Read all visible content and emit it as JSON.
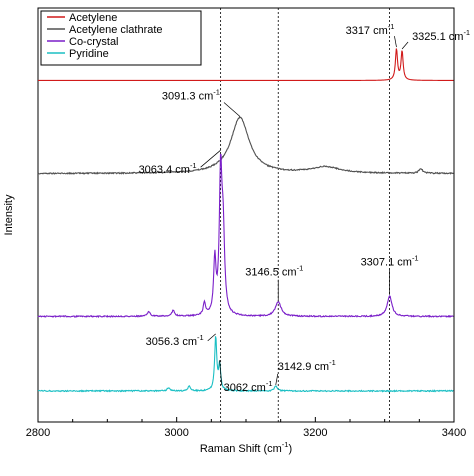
{
  "chart_data": {
    "type": "line",
    "xlabel": "Raman Shift (cm",
    "xlabel_sup": "-1",
    "xlabel_tail": ")",
    "ylabel": "Intensity",
    "xlim": [
      2800,
      3400
    ],
    "x_ticks": [
      2800,
      3000,
      3200,
      3400
    ],
    "grid": false,
    "legend_position": "top-left",
    "reference_lines_x": [
      3063.4,
      3146.5,
      3307.1
    ],
    "series": [
      {
        "name": "Acetylene",
        "color": "#d11a1a",
        "baseline_frac": 0.175,
        "peaks": [
          [
            3317,
            0.075,
            1.8
          ],
          [
            3325.1,
            0.07,
            1.8
          ]
        ]
      },
      {
        "name": "Acetylene clathrate",
        "color": "#505050",
        "baseline_frac": 0.4,
        "peaks": [
          [
            3091.3,
            0.135,
            16
          ],
          [
            3215,
            0.015,
            25
          ],
          [
            3352,
            0.012,
            3
          ]
        ]
      },
      {
        "name": "Co-crystal",
        "color": "#7a1fc9",
        "baseline_frac": 0.745,
        "peaks": [
          [
            3063.4,
            0.33,
            2.2
          ],
          [
            3067,
            0.19,
            2.5
          ],
          [
            3055,
            0.13,
            2
          ],
          [
            3146.5,
            0.035,
            5
          ],
          [
            3307.1,
            0.05,
            4
          ],
          [
            3040,
            0.03,
            2
          ],
          [
            2995,
            0.014,
            2.5
          ],
          [
            2960,
            0.012,
            2.5
          ]
        ]
      },
      {
        "name": "Pyridine",
        "color": "#1bbfc4",
        "baseline_frac": 0.925,
        "peaks": [
          [
            3056.3,
            0.13,
            1.8
          ],
          [
            3062,
            0.06,
            1.8
          ],
          [
            3142.9,
            0.012,
            2.5
          ],
          [
            3018,
            0.012,
            2
          ],
          [
            2988,
            0.008,
            2
          ]
        ]
      }
    ],
    "annotations": [
      {
        "text": "3317 cm",
        "sup": "-1",
        "x": 3317,
        "series": "Acetylene"
      },
      {
        "text": "3325.1 cm",
        "sup": "-1",
        "x": 3325.1,
        "series": "Acetylene"
      },
      {
        "text": "3091.3 cm",
        "sup": "-1",
        "x": 3091.3,
        "series": "Acetylene clathrate"
      },
      {
        "text": "3063.4 cm",
        "sup": "-1",
        "x": 3063.4,
        "series": "Co-crystal"
      },
      {
        "text": "3146.5 cm",
        "sup": "-1",
        "x": 3146.5,
        "series": "Co-crystal"
      },
      {
        "text": "3307.1 cm",
        "sup": "-1",
        "x": 3307.1,
        "series": "Co-crystal"
      },
      {
        "text": "3056.3 cm",
        "sup": "-1",
        "x": 3056.3,
        "series": "Pyridine"
      },
      {
        "text": "3062 cm",
        "sup": "-1",
        "x": 3062,
        "series": "Pyridine"
      },
      {
        "text": "3142.9 cm",
        "sup": "-1",
        "x": 3142.9,
        "series": "Pyridine"
      }
    ]
  }
}
